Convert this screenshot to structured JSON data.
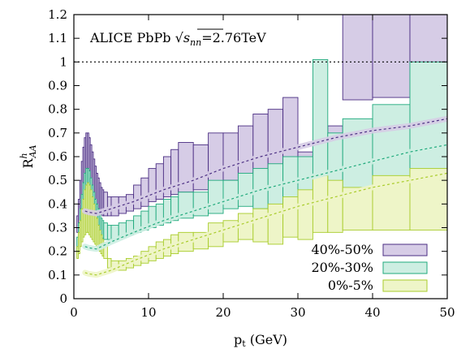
{
  "chart_data": {
    "type": "area",
    "title": "",
    "annotation": {
      "prefix": "ALICE PbPb ",
      "sqrt_symbol": "√",
      "sqrt_arg": "s",
      "sqrt_sub": "nn",
      "suffix": "=2.76TeV"
    },
    "xlabel": {
      "main": "p",
      "sub": "t",
      "rest": " (GeV)"
    },
    "ylabel": {
      "main": "R",
      "sup": "h",
      "sub": "AA"
    },
    "xlim": [
      0,
      50
    ],
    "ylim": [
      0,
      1.2
    ],
    "xticks": [
      "0",
      "10",
      "20",
      "30",
      "40",
      "50"
    ],
    "yticks": [
      "0",
      "0.1",
      "0.2",
      "0.3",
      "0.4",
      "0.5",
      "0.6",
      "0.7",
      "0.8",
      "0.9",
      "1",
      "1.1",
      "1.2"
    ],
    "reference_line": 1.0,
    "legend_position": "bottom-right",
    "series": [
      {
        "name": "40%-50%",
        "fill": "#d6cce6",
        "stroke": "#4b2e83",
        "band": [
          [
            0.4,
            0.28,
            0.35
          ],
          [
            0.6,
            0.32,
            0.42
          ],
          [
            0.8,
            0.36,
            0.5
          ],
          [
            1.0,
            0.4,
            0.58
          ],
          [
            1.2,
            0.43,
            0.64
          ],
          [
            1.4,
            0.45,
            0.68
          ],
          [
            1.6,
            0.46,
            0.7
          ],
          [
            1.8,
            0.46,
            0.7
          ],
          [
            2.0,
            0.45,
            0.68
          ],
          [
            2.2,
            0.44,
            0.65
          ],
          [
            2.4,
            0.42,
            0.62
          ],
          [
            2.6,
            0.41,
            0.59
          ],
          [
            2.8,
            0.39,
            0.56
          ],
          [
            3.0,
            0.38,
            0.53
          ],
          [
            3.2,
            0.37,
            0.51
          ],
          [
            3.4,
            0.36,
            0.49
          ],
          [
            3.6,
            0.355,
            0.47
          ],
          [
            3.8,
            0.35,
            0.46
          ],
          [
            4.0,
            0.35,
            0.45
          ],
          [
            4.5,
            0.35,
            0.43
          ],
          [
            5,
            0.35,
            0.43
          ],
          [
            6,
            0.36,
            0.43
          ],
          [
            7,
            0.37,
            0.44
          ],
          [
            8,
            0.38,
            0.48
          ],
          [
            9,
            0.39,
            0.51
          ],
          [
            10,
            0.41,
            0.55
          ],
          [
            11,
            0.42,
            0.57
          ],
          [
            12,
            0.43,
            0.6
          ],
          [
            13,
            0.44,
            0.63
          ],
          [
            14,
            0.45,
            0.66
          ],
          [
            16,
            0.46,
            0.65
          ],
          [
            18,
            0.47,
            0.7
          ],
          [
            20,
            0.5,
            0.7
          ],
          [
            22,
            0.51,
            0.73
          ],
          [
            24,
            0.5,
            0.78
          ],
          [
            26,
            0.49,
            0.8
          ],
          [
            28,
            0.53,
            0.85
          ],
          [
            30,
            0.51,
            0.62
          ],
          [
            32,
            0.58,
            0.67
          ],
          [
            34,
            0.56,
            0.73
          ],
          [
            36,
            0.84,
            1.2
          ],
          [
            40,
            0.85,
            1.2
          ],
          [
            45,
            1.0,
            1.2
          ],
          [
            50,
            1.0,
            1.2
          ]
        ],
        "curve": [
          [
            1.5,
            0.37
          ],
          [
            2,
            0.365
          ],
          [
            3,
            0.36
          ],
          [
            5,
            0.38
          ],
          [
            8,
            0.41
          ],
          [
            12,
            0.46
          ],
          [
            16,
            0.5
          ],
          [
            20,
            0.55
          ],
          [
            25,
            0.6
          ],
          [
            30,
            0.64
          ],
          [
            35,
            0.68
          ],
          [
            40,
            0.71
          ],
          [
            45,
            0.73
          ],
          [
            50,
            0.76
          ]
        ]
      },
      {
        "name": "20%-30%",
        "fill": "#cdeee2",
        "stroke": "#1fa97c",
        "band": [
          [
            0.4,
            0.2,
            0.26
          ],
          [
            0.6,
            0.23,
            0.32
          ],
          [
            0.8,
            0.26,
            0.38
          ],
          [
            1.0,
            0.29,
            0.44
          ],
          [
            1.2,
            0.31,
            0.49
          ],
          [
            1.4,
            0.33,
            0.53
          ],
          [
            1.6,
            0.34,
            0.55
          ],
          [
            1.8,
            0.34,
            0.55
          ],
          [
            2.0,
            0.33,
            0.54
          ],
          [
            2.2,
            0.32,
            0.51
          ],
          [
            2.4,
            0.31,
            0.48
          ],
          [
            2.6,
            0.3,
            0.45
          ],
          [
            2.8,
            0.29,
            0.42
          ],
          [
            3.0,
            0.28,
            0.4
          ],
          [
            3.2,
            0.27,
            0.38
          ],
          [
            3.4,
            0.265,
            0.36
          ],
          [
            3.6,
            0.26,
            0.34
          ],
          [
            3.8,
            0.255,
            0.33
          ],
          [
            4.0,
            0.25,
            0.32
          ],
          [
            4.5,
            0.25,
            0.31
          ],
          [
            5,
            0.25,
            0.31
          ],
          [
            6,
            0.26,
            0.32
          ],
          [
            7,
            0.27,
            0.33
          ],
          [
            8,
            0.28,
            0.35
          ],
          [
            9,
            0.29,
            0.37
          ],
          [
            10,
            0.3,
            0.39
          ],
          [
            11,
            0.31,
            0.4
          ],
          [
            12,
            0.32,
            0.42
          ],
          [
            13,
            0.33,
            0.43
          ],
          [
            14,
            0.34,
            0.45
          ],
          [
            16,
            0.35,
            0.45
          ],
          [
            18,
            0.36,
            0.5
          ],
          [
            20,
            0.38,
            0.5
          ],
          [
            22,
            0.39,
            0.53
          ],
          [
            24,
            0.38,
            0.55
          ],
          [
            26,
            0.37,
            0.57
          ],
          [
            28,
            0.4,
            0.6
          ],
          [
            30,
            0.38,
            0.6
          ],
          [
            32,
            0.42,
            1.01
          ],
          [
            34,
            0.4,
            0.7
          ],
          [
            36,
            0.36,
            0.76
          ],
          [
            40,
            0.33,
            0.82
          ],
          [
            45,
            0.35,
            1.0
          ],
          [
            50,
            0.35,
            1.0
          ]
        ],
        "curve": [
          [
            1.5,
            0.22
          ],
          [
            2,
            0.215
          ],
          [
            3,
            0.21
          ],
          [
            5,
            0.24
          ],
          [
            8,
            0.28
          ],
          [
            12,
            0.33
          ],
          [
            16,
            0.37
          ],
          [
            20,
            0.41
          ],
          [
            25,
            0.46
          ],
          [
            30,
            0.5
          ],
          [
            35,
            0.54
          ],
          [
            40,
            0.58
          ],
          [
            45,
            0.62
          ],
          [
            50,
            0.65
          ]
        ]
      },
      {
        "name": "0%-5%",
        "fill": "#eef5c8",
        "stroke": "#a8cc2a",
        "band": [
          [
            0.4,
            0.17,
            0.22
          ],
          [
            0.6,
            0.19,
            0.28
          ],
          [
            0.8,
            0.22,
            0.33
          ],
          [
            1.0,
            0.24,
            0.38
          ],
          [
            1.2,
            0.26,
            0.42
          ],
          [
            1.4,
            0.27,
            0.46
          ],
          [
            1.6,
            0.28,
            0.48
          ],
          [
            1.8,
            0.28,
            0.49
          ],
          [
            2.0,
            0.27,
            0.48
          ],
          [
            2.2,
            0.26,
            0.46
          ],
          [
            2.4,
            0.25,
            0.43
          ],
          [
            2.6,
            0.24,
            0.4
          ],
          [
            2.8,
            0.23,
            0.37
          ],
          [
            3.0,
            0.22,
            0.34
          ],
          [
            3.2,
            0.21,
            0.31
          ],
          [
            3.4,
            0.2,
            0.29
          ],
          [
            3.6,
            0.19,
            0.27
          ],
          [
            3.8,
            0.18,
            0.25
          ],
          [
            4.0,
            0.17,
            0.23
          ],
          [
            4.5,
            0.13,
            0.17
          ],
          [
            5,
            0.12,
            0.16
          ],
          [
            6,
            0.12,
            0.16
          ],
          [
            7,
            0.13,
            0.17
          ],
          [
            8,
            0.14,
            0.18
          ],
          [
            9,
            0.15,
            0.2
          ],
          [
            10,
            0.16,
            0.22
          ],
          [
            11,
            0.17,
            0.24
          ],
          [
            12,
            0.18,
            0.25
          ],
          [
            13,
            0.19,
            0.27
          ],
          [
            14,
            0.2,
            0.28
          ],
          [
            16,
            0.21,
            0.28
          ],
          [
            18,
            0.22,
            0.32
          ],
          [
            20,
            0.24,
            0.33
          ],
          [
            22,
            0.25,
            0.36
          ],
          [
            24,
            0.24,
            0.38
          ],
          [
            26,
            0.23,
            0.4
          ],
          [
            28,
            0.26,
            0.43
          ],
          [
            30,
            0.25,
            0.46
          ],
          [
            32,
            0.28,
            0.52
          ],
          [
            34,
            0.28,
            0.5
          ],
          [
            36,
            0.29,
            0.47
          ],
          [
            40,
            0.29,
            0.52
          ],
          [
            45,
            0.29,
            0.55
          ],
          [
            50,
            0.29,
            0.55
          ]
        ],
        "curve": [
          [
            1.5,
            0.11
          ],
          [
            2,
            0.105
          ],
          [
            3,
            0.1
          ],
          [
            5,
            0.12
          ],
          [
            8,
            0.16
          ],
          [
            12,
            0.21
          ],
          [
            16,
            0.25
          ],
          [
            20,
            0.29
          ],
          [
            25,
            0.34
          ],
          [
            30,
            0.39
          ],
          [
            35,
            0.43
          ],
          [
            40,
            0.47
          ],
          [
            45,
            0.5
          ],
          [
            50,
            0.53
          ]
        ]
      }
    ]
  }
}
